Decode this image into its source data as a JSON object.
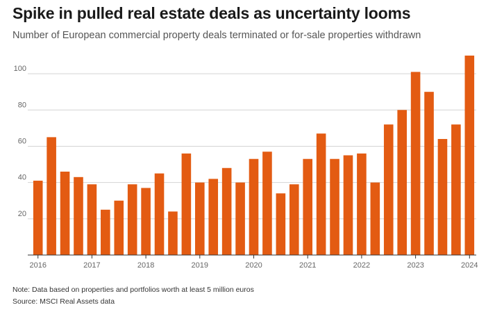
{
  "title": "Spike in pulled real estate deals as uncertainty looms",
  "subtitle": "Number of European commercial property deals terminated or for-sale properties withdrawn",
  "note": "Note: Data based on properties and portfolios worth at least 5 million euros",
  "source": "Source: MSCI Real Assets data",
  "colors": {
    "bar": "#e35b12",
    "grid": "#d4d4d4",
    "axis": "#333333",
    "tick_text": "#666666"
  },
  "chart_data": {
    "type": "bar",
    "title": "Spike in pulled real estate deals as uncertainty looms",
    "subtitle": "Number of European commercial property deals terminated or for-sale properties withdrawn",
    "xlabel": "",
    "ylabel": "",
    "ylim": [
      0,
      110
    ],
    "yticks": [
      20,
      40,
      60,
      80,
      100
    ],
    "grid": true,
    "legend": "none",
    "x_tick_labels": [
      "2016",
      "2017",
      "2018",
      "2019",
      "2020",
      "2021",
      "2022",
      "2023",
      "2024"
    ],
    "x_tick_bar_index": [
      0,
      4,
      8,
      12,
      16,
      20,
      24,
      28,
      32
    ],
    "series": [
      {
        "name": "Deals terminated or withdrawn",
        "values": [
          41,
          65,
          46,
          43,
          39,
          25,
          30,
          39,
          37,
          45,
          24,
          56,
          40,
          42,
          48,
          40,
          53,
          57,
          34,
          39,
          53,
          67,
          53,
          55,
          56,
          40,
          72,
          80,
          101,
          90,
          64,
          72,
          110
        ]
      }
    ]
  }
}
